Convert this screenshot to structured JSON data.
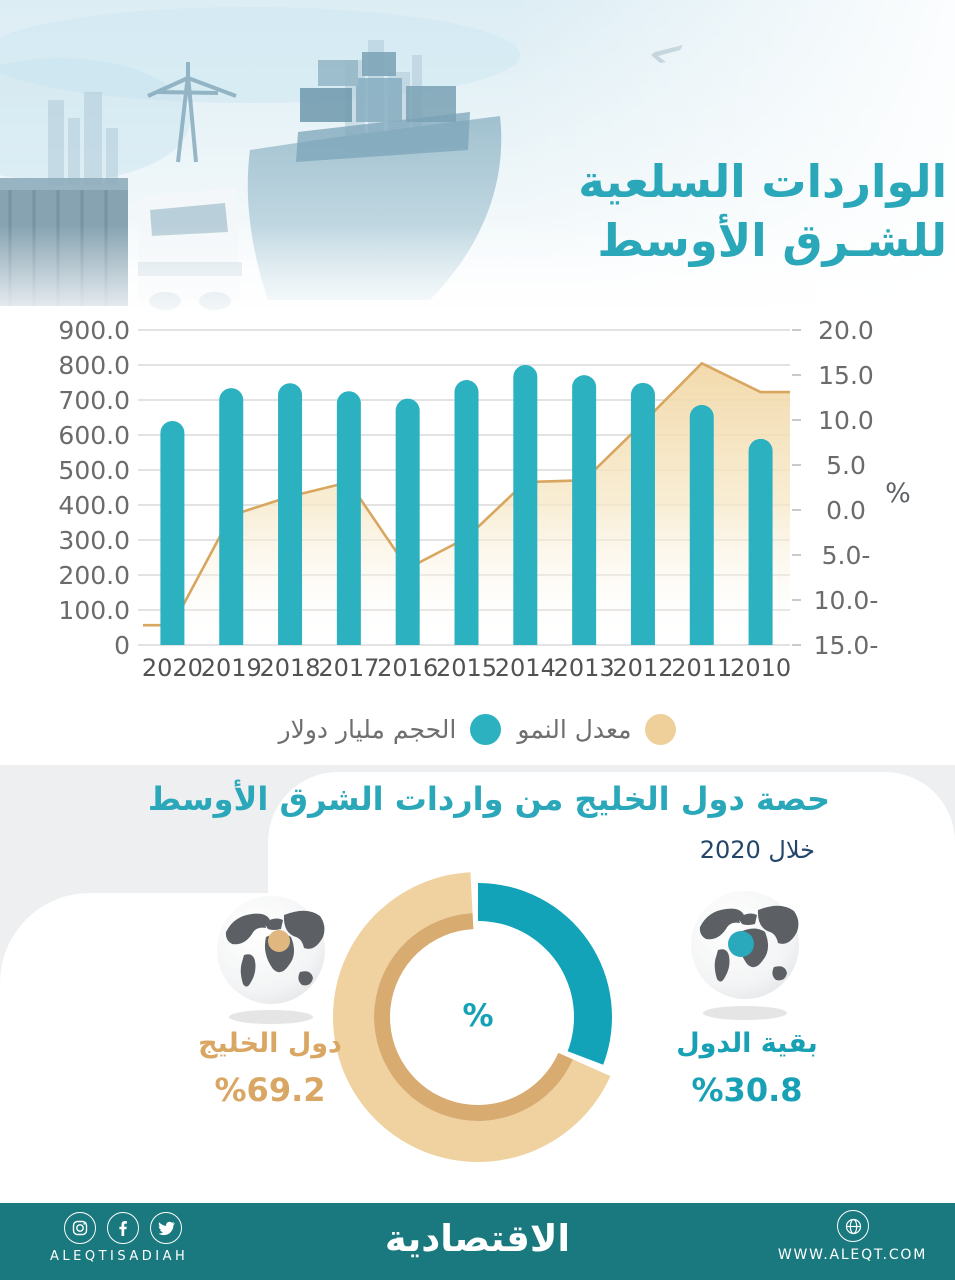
{
  "header": {
    "title_line1": "الواردات السلعية",
    "title_line2": "للشـرق الأوسط"
  },
  "chart_data": {
    "type": "bar",
    "categories": [
      "2020",
      "2019",
      "2018",
      "2017",
      "2016",
      "2015",
      "2014",
      "2013",
      "2012",
      "2011",
      "2010"
    ],
    "series": [
      {
        "name": "الحجم مليار دولار",
        "type": "bar",
        "axis": "left",
        "color": "#2bb1bf",
        "values": [
          640,
          734,
          748,
          725,
          704,
          757,
          800,
          771,
          749,
          686,
          589
        ]
      },
      {
        "name": "معدل النمو",
        "type": "area",
        "axis": "right",
        "color": "#d9a65f",
        "fill": "#f0d29b",
        "values": [
          -12.8,
          -0.6,
          1.5,
          3.1,
          -6.5,
          -3.1,
          3.1,
          3.3,
          9.7,
          16.3,
          13.1
        ]
      }
    ],
    "left_axis": {
      "min": 0,
      "max": 900,
      "step": 100,
      "tick_labels": [
        "900.0",
        "800.0",
        "700.0",
        "600.0",
        "500.0",
        "400.0",
        "300.0",
        "200.0",
        "100.0",
        "0"
      ]
    },
    "right_axis": {
      "min": -15,
      "max": 20,
      "step": 5,
      "unit": "%",
      "tick_labels": [
        "20.0",
        "15.0",
        "10.0",
        "5.0",
        "0.0",
        "5.0-",
        "10.0-",
        "15.0-"
      ]
    },
    "legend": [
      {
        "label": "الحجم مليار دولار",
        "color": "#2bb1bf"
      },
      {
        "label": "معدل النمو",
        "color": "#f0d09a"
      }
    ],
    "grid": true
  },
  "gulf_section": {
    "title": "حصة دول الخليج من واردات الشرق الأوسط",
    "subtitle": "خلال 2020",
    "donut": {
      "type": "pie",
      "center_label": "%",
      "slices": [
        {
          "label": "دول الخليج",
          "value": 69.2,
          "display": "%69.2",
          "color": "#efd2a0",
          "inner_ring_color": "#d8ab71"
        },
        {
          "label": "بقية الدول",
          "value": 30.8,
          "display": "%30.8",
          "color": "#12a3b8"
        }
      ]
    },
    "left_share": {
      "label": "دول الخليج",
      "value": "%69.2"
    },
    "right_share": {
      "label": "بقية الدول",
      "value": "%30.8"
    }
  },
  "footer": {
    "brand_latin": "ALEQTISADIAH",
    "logo": "الاقتصادية",
    "website": "WWW.ALEQT.COM",
    "social": [
      "instagram",
      "facebook",
      "twitter"
    ]
  },
  "colors": {
    "teal_title": "#2aa7b9",
    "teal_bar": "#2bb1bf",
    "teal_donut": "#12a3b8",
    "beige_area": "#f0d29b",
    "beige_line": "#d9a65f",
    "navy_text": "#24466b",
    "footer_bg": "#19797e",
    "section_bg": "#edeff1"
  }
}
